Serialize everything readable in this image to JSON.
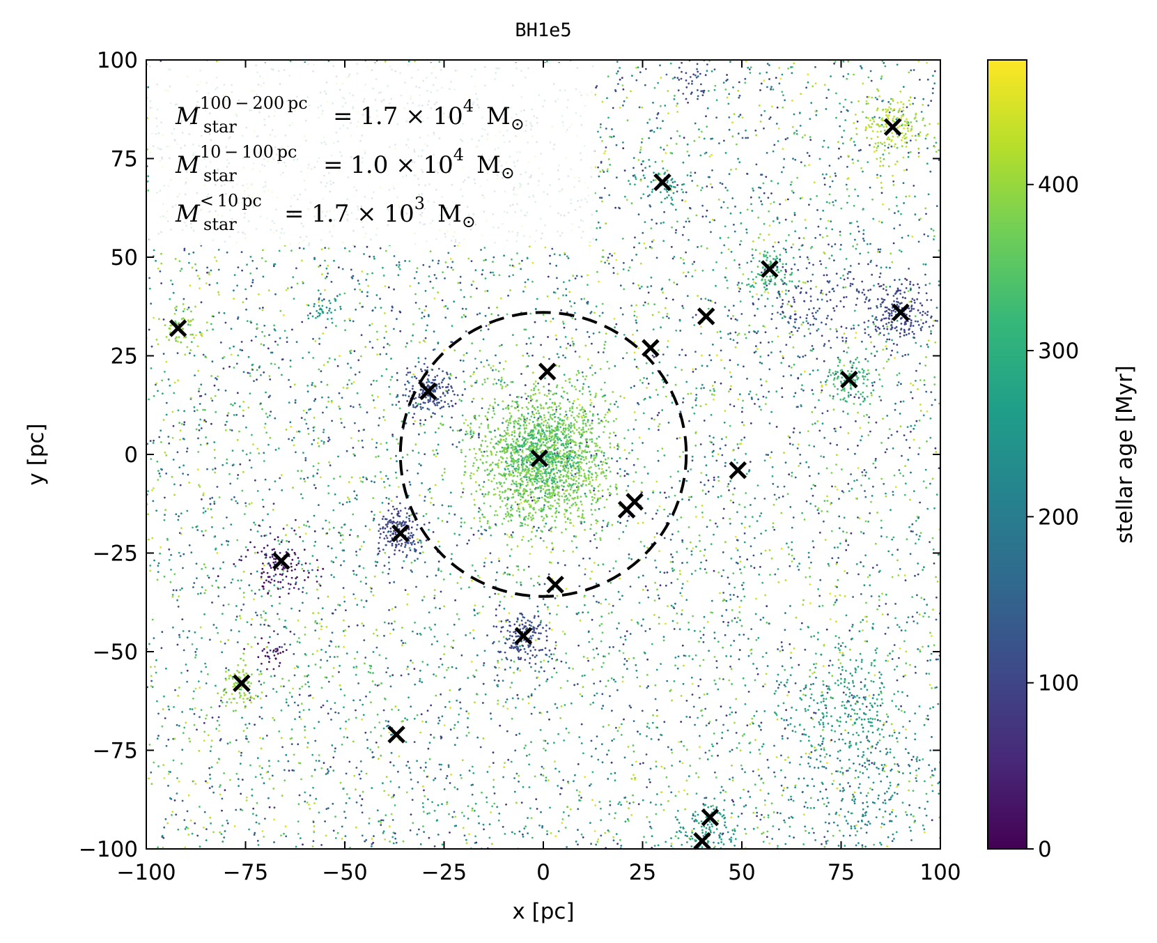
{
  "chart_data": {
    "type": "scatter",
    "title": "BH1e5",
    "xlabel": "x [pc]",
    "ylabel": "y [pc]",
    "xlim": [
      -100,
      100
    ],
    "ylim": [
      -100,
      100
    ],
    "xticks": [
      -100,
      -75,
      -50,
      -25,
      0,
      25,
      50,
      75,
      100
    ],
    "yticks": [
      -100,
      -75,
      -50,
      -25,
      0,
      25,
      50,
      75,
      100
    ],
    "xtick_labels": [
      "−100",
      "−75",
      "−50",
      "−25",
      "0",
      "25",
      "50",
      "75",
      "100"
    ],
    "ytick_labels": [
      "−100",
      "−75",
      "−50",
      "−25",
      "0",
      "25",
      "50",
      "75",
      "100"
    ],
    "colorbar": {
      "label": "stellar age [Myr]",
      "range": [
        0,
        475
      ],
      "ticks": [
        0,
        100,
        200,
        300,
        400
      ],
      "tick_labels": [
        "0",
        "100",
        "200",
        "300",
        "400"
      ],
      "colormap": [
        "#440154",
        "#482878",
        "#3e4989",
        "#31688e",
        "#26828e",
        "#1f9e89",
        "#35b779",
        "#6ece58",
        "#b5de2b",
        "#fde725"
      ]
    },
    "circle": {
      "center": [
        0,
        0
      ],
      "radius": 36,
      "style": "dashed"
    },
    "annotations": [
      {
        "symbol": "M",
        "sub": "star",
        "sup": "100 − 200 pc",
        "value": "= 1.7 × 10",
        "exp": "4",
        "unit": "M",
        "unit_sub": "⊙"
      },
      {
        "symbol": "M",
        "sub": "star",
        "sup": "10 − 100 pc",
        "value": "= 1.0 × 10",
        "exp": "4",
        "unit": "M",
        "unit_sub": "⊙"
      },
      {
        "symbol": "M",
        "sub": "star",
        "sup": "< 10 pc",
        "value": "= 1.7 × 10",
        "exp": "3",
        "unit": "M",
        "unit_sub": "⊙"
      }
    ],
    "clusters_markers": [
      {
        "x": -1,
        "y": -1,
        "age": 380
      },
      {
        "x": -29,
        "y": 16,
        "age": 110
      },
      {
        "x": 1,
        "y": 21,
        "age": 100
      },
      {
        "x": 27,
        "y": 27,
        "age": 110
      },
      {
        "x": 41,
        "y": 35,
        "age": 400
      },
      {
        "x": 49,
        "y": -4,
        "age": 110
      },
      {
        "x": 21,
        "y": -14,
        "age": 300
      },
      {
        "x": 23,
        "y": -12,
        "age": 300
      },
      {
        "x": -36,
        "y": -20,
        "age": 100
      },
      {
        "x": 3,
        "y": -33,
        "age": 280
      },
      {
        "x": -5,
        "y": -46,
        "age": 110
      },
      {
        "x": -66,
        "y": -27,
        "age": 30
      },
      {
        "x": -76,
        "y": -58,
        "age": 400
      },
      {
        "x": -37,
        "y": -71,
        "age": 80
      },
      {
        "x": -92,
        "y": 32,
        "age": 400
      },
      {
        "x": 30,
        "y": 69,
        "age": 260
      },
      {
        "x": 57,
        "y": 47,
        "age": 320
      },
      {
        "x": 90,
        "y": 36,
        "age": 100
      },
      {
        "x": 77,
        "y": 19,
        "age": 320
      },
      {
        "x": 88,
        "y": 83,
        "age": 420
      },
      {
        "x": 42,
        "y": -92,
        "age": 260
      },
      {
        "x": 40,
        "y": -98,
        "age": 260
      }
    ],
    "clumps": [
      {
        "x": 0,
        "y": -1,
        "age": 380,
        "n": 1400,
        "sigma": 9
      },
      {
        "x": 0,
        "y": 0,
        "age": 320,
        "n": 400,
        "sigma": 5
      },
      {
        "x": -29,
        "y": 16,
        "age": 110,
        "n": 180,
        "sigma": 3
      },
      {
        "x": -36,
        "y": -20,
        "age": 100,
        "n": 180,
        "sigma": 3
      },
      {
        "x": -5,
        "y": -46,
        "age": 110,
        "n": 150,
        "sigma": 3
      },
      {
        "x": 90,
        "y": 36,
        "age": 100,
        "n": 200,
        "sigma": 4
      },
      {
        "x": 88,
        "y": 83,
        "age": 420,
        "n": 160,
        "sigma": 4
      },
      {
        "x": 57,
        "y": 47,
        "age": 320,
        "n": 110,
        "sigma": 3
      },
      {
        "x": 77,
        "y": 19,
        "age": 320,
        "n": 110,
        "sigma": 3
      },
      {
        "x": -76,
        "y": -58,
        "age": 400,
        "n": 90,
        "sigma": 2.5
      },
      {
        "x": -92,
        "y": 32,
        "age": 400,
        "n": 50,
        "sigma": 2.5
      },
      {
        "x": -66,
        "y": -28,
        "age": 25,
        "n": 120,
        "sigma": 4
      },
      {
        "x": -68,
        "y": -51,
        "age": 20,
        "n": 30,
        "sigma": 2
      },
      {
        "x": 30,
        "y": 69,
        "age": 260,
        "n": 60,
        "sigma": 2.5
      },
      {
        "x": 41,
        "y": -96,
        "age": 260,
        "n": 140,
        "sigma": 4
      },
      {
        "x": 76,
        "y": -64,
        "age": 280,
        "n": 220,
        "sigma": 8
      },
      {
        "x": 68,
        "y": 40,
        "age": 110,
        "n": 160,
        "sigma": 8
      },
      {
        "x": 80,
        "y": -85,
        "age": 220,
        "n": 200,
        "sigma": 10
      },
      {
        "x": -56,
        "y": 36,
        "age": 260,
        "n": 30,
        "sigma": 2
      },
      {
        "x": 38,
        "y": 94,
        "age": 110,
        "n": 40,
        "sigma": 3
      }
    ],
    "background": {
      "n": 7000,
      "age_range": [
        60,
        460
      ]
    }
  }
}
